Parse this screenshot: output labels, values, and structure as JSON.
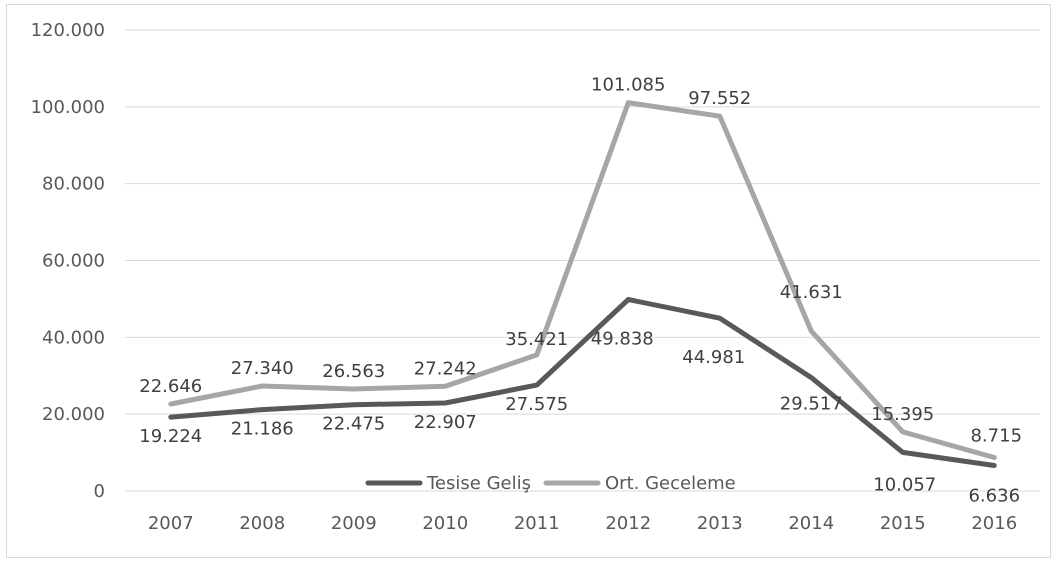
{
  "chart_data": {
    "type": "line",
    "title": "",
    "xlabel": "",
    "ylabel": "",
    "categories": [
      "2007",
      "2008",
      "2009",
      "2010",
      "2011",
      "2012",
      "2013",
      "2014",
      "2015",
      "2016"
    ],
    "ylim": [
      0,
      120000
    ],
    "yticks": [
      0,
      20000,
      40000,
      60000,
      80000,
      100000,
      120000
    ],
    "ytick_labels": [
      "0",
      "20.000",
      "40.000",
      "60.000",
      "80.000",
      "100.000",
      "120.000"
    ],
    "grid": true,
    "legend_position": "bottom",
    "series": [
      {
        "name": "Tesise Geliş",
        "color": "#595959",
        "values": [
          19224,
          21186,
          22475,
          22907,
          27575,
          49838,
          44981,
          29517,
          10057,
          6636
        ],
        "labels": [
          "19.224",
          "21.186",
          "22.475",
          "22.907",
          "27.575",
          "49.838",
          "44.981",
          "29.517",
          "10.057",
          "6.636"
        ]
      },
      {
        "name": "Ort. Geceleme",
        "color": "#a6a6a6",
        "values": [
          22646,
          27340,
          26563,
          27242,
          35421,
          101085,
          97552,
          41631,
          15395,
          8715
        ],
        "labels": [
          "22.646",
          "27.340",
          "26.563",
          "27.242",
          "35.421",
          "101.085",
          "97.552",
          "41.631",
          "15.395",
          "8.715"
        ]
      }
    ]
  }
}
